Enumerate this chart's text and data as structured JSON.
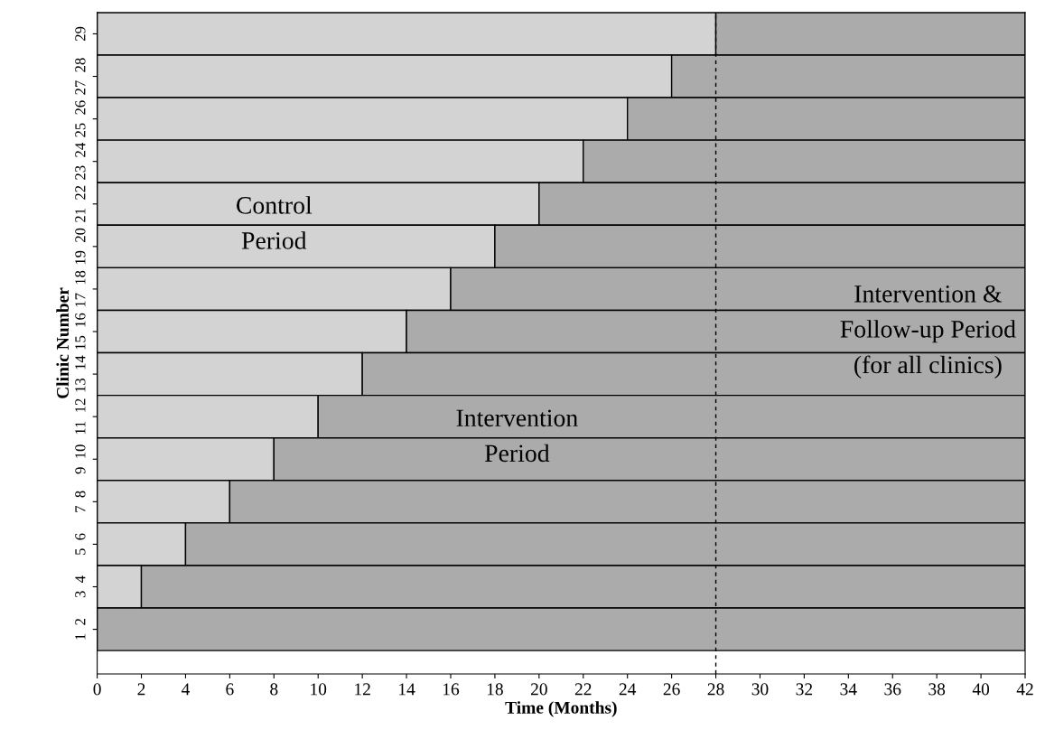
{
  "chart_data": {
    "type": "bar",
    "orientation": "horizontal",
    "stacked": true,
    "xlabel": "Time (Months)",
    "ylabel": "Clinic Number",
    "categories": [
      "29",
      "27  28",
      "25  26",
      "23  24",
      "21  22",
      "19  20",
      "17  18",
      "15  16",
      "13  14",
      "11  12",
      "9  10",
      "7  8",
      "5  6",
      "3  4",
      "1  2"
    ],
    "series": [
      {
        "color": "#d3d3d3",
        "values": [
          28,
          26,
          24,
          22,
          20,
          18,
          16,
          14,
          12,
          10,
          8,
          6,
          4,
          2,
          0
        ]
      },
      {
        "color": "#ababab",
        "values": [
          14,
          16,
          18,
          20,
          22,
          24,
          26,
          28,
          30,
          32,
          34,
          36,
          38,
          40,
          42
        ]
      }
    ],
    "xlim": [
      0,
      42
    ],
    "xticks": [
      0,
      2,
      4,
      6,
      8,
      10,
      12,
      14,
      16,
      18,
      20,
      22,
      24,
      26,
      28,
      30,
      32,
      34,
      36,
      38,
      40,
      42
    ],
    "ref_lines": [
      {
        "axis": "x",
        "value": 28,
        "color": "#000000",
        "line_style": "dashed"
      }
    ],
    "annotations": [
      "Control\nPeriod",
      "Intervention\nPeriod",
      "Intervention &\nFollow-up Period\n(for all clinics)"
    ],
    "grid": false,
    "legend": false
  }
}
